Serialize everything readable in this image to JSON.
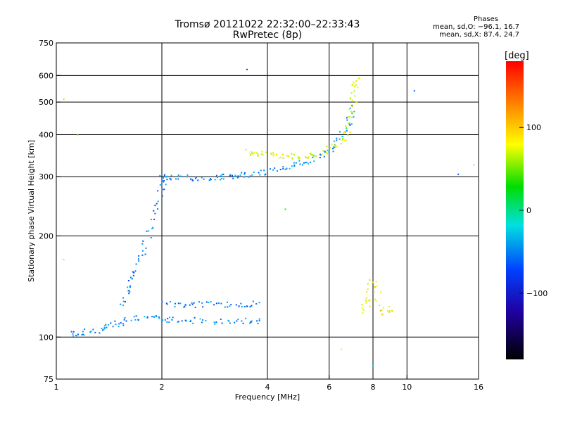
{
  "header": {
    "title_line1": "Tromsø 20121022 22:32:00–22:33:43",
    "title_line2": "RwPretec (8p)"
  },
  "stats": {
    "heading": "Phases",
    "line_O": "mean, sd,O: −96.1, 16.7",
    "line_X": "mean, sd,X:  87.4, 24.7"
  },
  "colorbar": {
    "unit_label": "[deg]",
    "ticks": [
      {
        "value": 100,
        "label": "100"
      },
      {
        "value": 0,
        "label": "0"
      },
      {
        "value": -100,
        "label": "−100"
      }
    ],
    "range": [
      -180,
      180
    ]
  },
  "colors": {
    "grid": "#000000",
    "background": "#ffffff"
  },
  "chart_data": {
    "type": "scatter",
    "title": "Tromsø 20121022 22:32:00–22:33:43",
    "subtitle": "RwPretec (8p)",
    "xlabel": "Frequency [MHz]",
    "ylabel": "Stationary phase Virtual Height [km]",
    "xscale": "log2",
    "yscale": "log",
    "xlim": [
      1,
      16
    ],
    "ylim": [
      75,
      750
    ],
    "xticks": [
      1,
      2,
      4,
      6,
      8,
      10,
      16
    ],
    "yticks": [
      75,
      100,
      200,
      300,
      400,
      500,
      600,
      750
    ],
    "xgrid": [
      2,
      4,
      6,
      8,
      10
    ],
    "ygrid": [
      100,
      200,
      300,
      400,
      500,
      600
    ],
    "color_variable": "phase [deg]",
    "traces": [
      {
        "x": [
          1.1,
          1.2,
          1.35,
          1.45,
          1.6,
          1.8,
          2.0,
          2.2,
          2.5,
          3.0,
          3.5,
          3.9
        ],
        "y": [
          102,
          103,
          105,
          108,
          112,
          115,
          113,
          112,
          112,
          111,
          112,
          112
        ],
        "phase": -95
      },
      {
        "x": [
          1.55,
          1.6,
          1.7,
          1.8,
          1.9,
          2.0,
          2.05
        ],
        "y": [
          125,
          140,
          160,
          190,
          230,
          280,
          300
        ],
        "phase": -100
      },
      {
        "x": [
          2.0,
          2.2,
          2.5,
          2.8,
          3.0,
          3.3,
          3.6,
          4.0,
          4.5,
          5.0,
          5.5,
          6.0,
          6.4,
          6.8,
          7.0
        ],
        "y": [
          298,
          298,
          297,
          298,
          300,
          302,
          305,
          310,
          318,
          328,
          340,
          360,
          390,
          430,
          490
        ],
        "phase": -95
      },
      {
        "x": [
          2.0,
          2.3,
          2.6,
          3.0,
          3.4,
          3.8
        ],
        "y": [
          125,
          125,
          125,
          125,
          125,
          126
        ],
        "phase": -100
      },
      {
        "x": [
          3.5,
          3.8,
          4.2,
          4.6,
          5.0,
          5.5,
          6.0,
          6.5,
          6.8,
          7.0,
          7.1,
          7.2
        ],
        "y": [
          355,
          350,
          348,
          345,
          345,
          348,
          360,
          380,
          420,
          480,
          550,
          600
        ],
        "phase": 90
      },
      {
        "x": [
          7.5,
          7.8,
          8.0,
          8.5,
          9.0
        ],
        "y": [
          120,
          130,
          150,
          118,
          122
        ],
        "phase": 100
      }
    ],
    "stray_points": [
      {
        "x": 1.05,
        "y": 510,
        "phase": 110
      },
      {
        "x": 1.15,
        "y": 400,
        "phase": 40
      },
      {
        "x": 3.5,
        "y": 625,
        "phase": -120
      },
      {
        "x": 4.5,
        "y": 240,
        "phase": 20
      },
      {
        "x": 6.5,
        "y": 92,
        "phase": 100
      },
      {
        "x": 8.0,
        "y": 82,
        "phase": -70
      },
      {
        "x": 10.5,
        "y": 540,
        "phase": -110
      },
      {
        "x": 14.0,
        "y": 305,
        "phase": -110
      },
      {
        "x": 15.5,
        "y": 325,
        "phase": 110
      },
      {
        "x": 1.05,
        "y": 170,
        "phase": 110
      }
    ]
  }
}
